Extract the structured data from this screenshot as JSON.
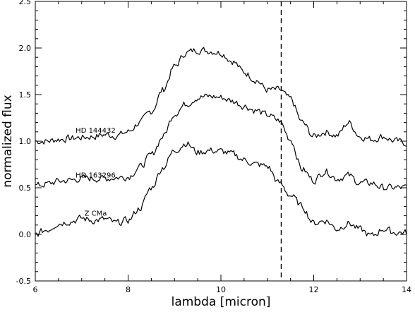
{
  "chart_data": {
    "type": "line",
    "title": "",
    "xlabel": "lambda [micron]",
    "ylabel": "normalized flux",
    "xlim": [
      6,
      14
    ],
    "ylim": [
      -0.5,
      2.5
    ],
    "xticks": [
      6,
      8,
      10,
      12,
      14
    ],
    "xtick_labels": [
      "6",
      "8",
      "10",
      "12",
      "14"
    ],
    "yticks": [
      -0.5,
      0.0,
      0.5,
      1.0,
      1.5,
      2.0,
      2.5
    ],
    "ytick_labels": [
      "-0.5",
      "0.0",
      "0.5",
      "1.0",
      "1.5",
      "2.0",
      "2.5"
    ],
    "grid": false,
    "vertical_line": {
      "x": 11.3,
      "style": "dashed"
    },
    "annotations": [
      {
        "text": "HD 144432",
        "x": 7.3,
        "y": 1.09
      },
      {
        "text": "HD 163296",
        "x": 7.3,
        "y": 0.61
      },
      {
        "text": "Z CMa",
        "x": 7.3,
        "y": 0.2
      }
    ],
    "series": [
      {
        "x": [
          6.0,
          6.25,
          6.5,
          6.75,
          7.0,
          7.25,
          7.5,
          7.75,
          8.0,
          8.25,
          8.5,
          8.75,
          9.0,
          9.25,
          9.5,
          9.75,
          10.0,
          10.25,
          10.5,
          10.75,
          11.0,
          11.25,
          11.5,
          11.75,
          12.0,
          12.25,
          12.5,
          12.75,
          13.0,
          13.25,
          13.5,
          13.75,
          14.0
        ],
        "values": [
          1.0,
          1.0,
          1.02,
          1.03,
          1.04,
          1.05,
          1.07,
          1.06,
          1.1,
          1.2,
          1.32,
          1.55,
          1.8,
          1.95,
          1.98,
          1.97,
          1.95,
          1.86,
          1.74,
          1.66,
          1.55,
          1.55,
          1.45,
          1.2,
          1.05,
          1.1,
          1.06,
          1.2,
          1.05,
          1.02,
          1.05,
          1.0,
          0.98
        ]
      },
      {
        "x": [
          6.0,
          6.25,
          6.5,
          6.75,
          7.0,
          7.25,
          7.5,
          7.75,
          8.0,
          8.25,
          8.5,
          8.75,
          9.0,
          9.25,
          9.5,
          9.75,
          10.0,
          10.25,
          10.5,
          10.75,
          11.0,
          11.25,
          11.5,
          11.75,
          12.0,
          12.25,
          12.5,
          12.75,
          13.0,
          13.25,
          13.5,
          13.75,
          14.0
        ],
        "values": [
          0.52,
          0.54,
          0.57,
          0.58,
          0.6,
          0.6,
          0.6,
          0.61,
          0.62,
          0.72,
          0.85,
          1.05,
          1.3,
          1.4,
          1.47,
          1.48,
          1.47,
          1.43,
          1.38,
          1.33,
          1.28,
          1.22,
          1.02,
          0.7,
          0.58,
          0.68,
          0.6,
          0.63,
          0.55,
          0.55,
          0.5,
          0.5,
          0.5
        ]
      },
      {
        "x": [
          6.0,
          6.25,
          6.5,
          6.75,
          7.0,
          7.25,
          7.5,
          7.75,
          8.0,
          8.25,
          8.5,
          8.75,
          9.0,
          9.25,
          9.5,
          9.75,
          10.0,
          10.25,
          10.5,
          10.75,
          11.0,
          11.25,
          11.5,
          11.75,
          12.0,
          12.25,
          12.5,
          12.75,
          13.0,
          13.25,
          13.5,
          13.75,
          14.0
        ],
        "values": [
          0.0,
          0.05,
          0.12,
          0.14,
          0.17,
          0.15,
          0.16,
          0.12,
          0.15,
          0.28,
          0.5,
          0.72,
          0.9,
          0.98,
          0.88,
          0.9,
          0.89,
          0.86,
          0.8,
          0.75,
          0.73,
          0.55,
          0.42,
          0.3,
          0.12,
          0.15,
          0.06,
          0.12,
          0.05,
          -0.02,
          0.06,
          0.02,
          0.02
        ]
      }
    ]
  }
}
